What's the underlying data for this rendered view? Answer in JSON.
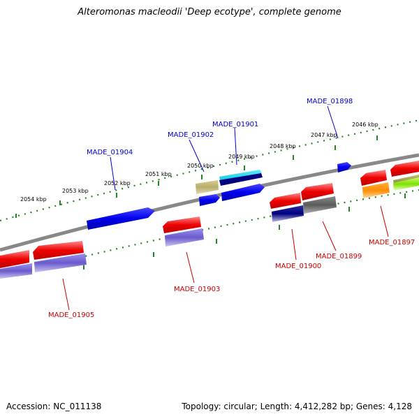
{
  "title": "Alteromonas macleodii 'Deep ecotype', complete genome",
  "footer": {
    "accession": "Accession: NC_011138",
    "info": "Topology: circular; Length: 4,412,282 bp; Genes: 4,128"
  },
  "colors": {
    "backbone": "#888888",
    "tick_dots": "#228822",
    "label_blue": "#0000cc",
    "label_red": "#cc0000"
  },
  "ticks": [
    "2046 kbp",
    "2047 kbp",
    "2048 kbp",
    "2049 kbp",
    "2050 kbp",
    "2051 kbp",
    "2052 kbp",
    "2053 kbp",
    "2054 kbp"
  ],
  "gene_labels_top": [
    "MADE_01898",
    "MADE_01901",
    "MADE_01902",
    "MADE_01904"
  ],
  "gene_labels_bottom": [
    "MADE_01897",
    "MADE_01899",
    "MADE_01900",
    "MADE_01903",
    "MADE_01905"
  ]
}
